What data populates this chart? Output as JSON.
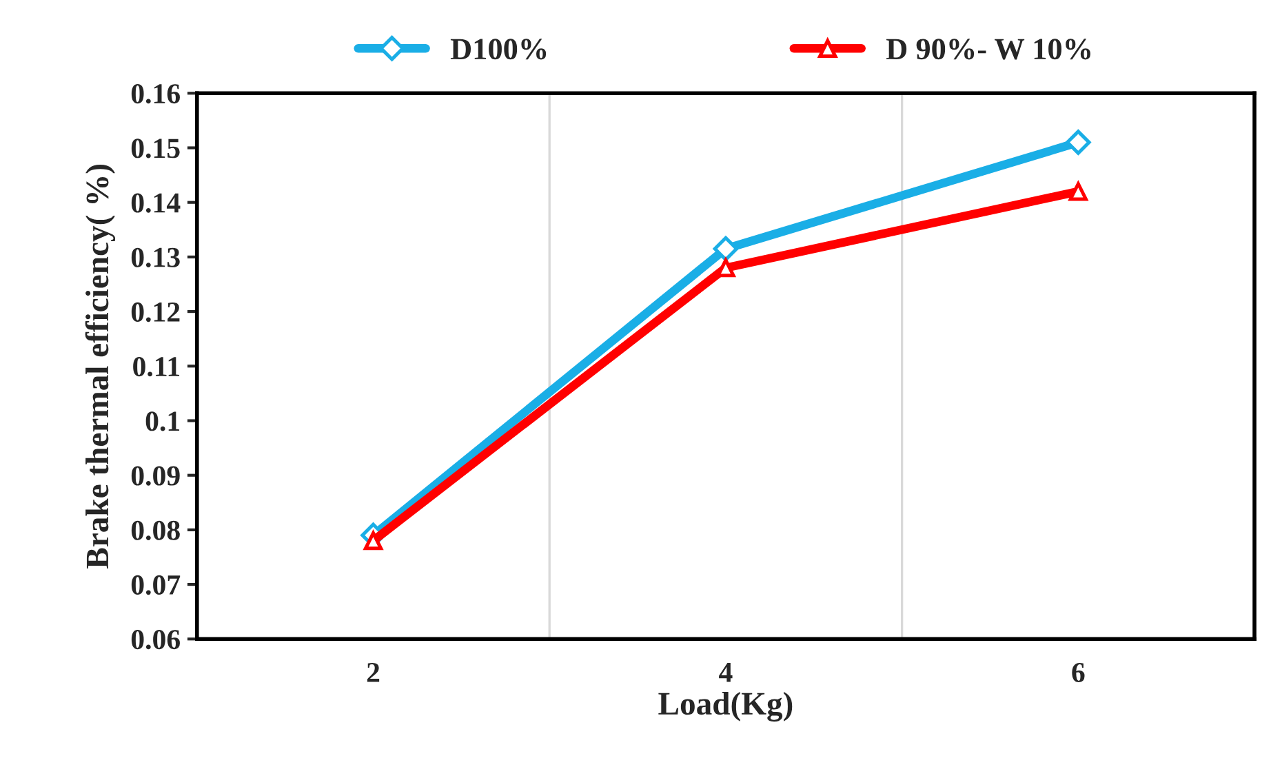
{
  "chart_data": {
    "type": "line",
    "xlabel": "Load(Kg)",
    "ylabel": "Brake thermal efficiency( %)",
    "categories": [
      "2",
      "4",
      "6"
    ],
    "series": [
      {
        "name": "D100%",
        "color": "#1aaee6",
        "marker": "diamond",
        "values": [
          0.079,
          0.1315,
          0.151
        ]
      },
      {
        "name": "D 90%- W 10%",
        "color": "#ff0000",
        "marker": "triangle",
        "values": [
          0.078,
          0.128,
          0.142
        ]
      }
    ],
    "ylim": [
      0.06,
      0.16
    ],
    "yticks": [
      0.06,
      0.07,
      0.08,
      0.09,
      {
        "value": 0.1,
        "label": "0.1"
      },
      0.11,
      0.12,
      0.13,
      0.14,
      0.15,
      0.16
    ],
    "grid": "x",
    "legend": "top"
  }
}
